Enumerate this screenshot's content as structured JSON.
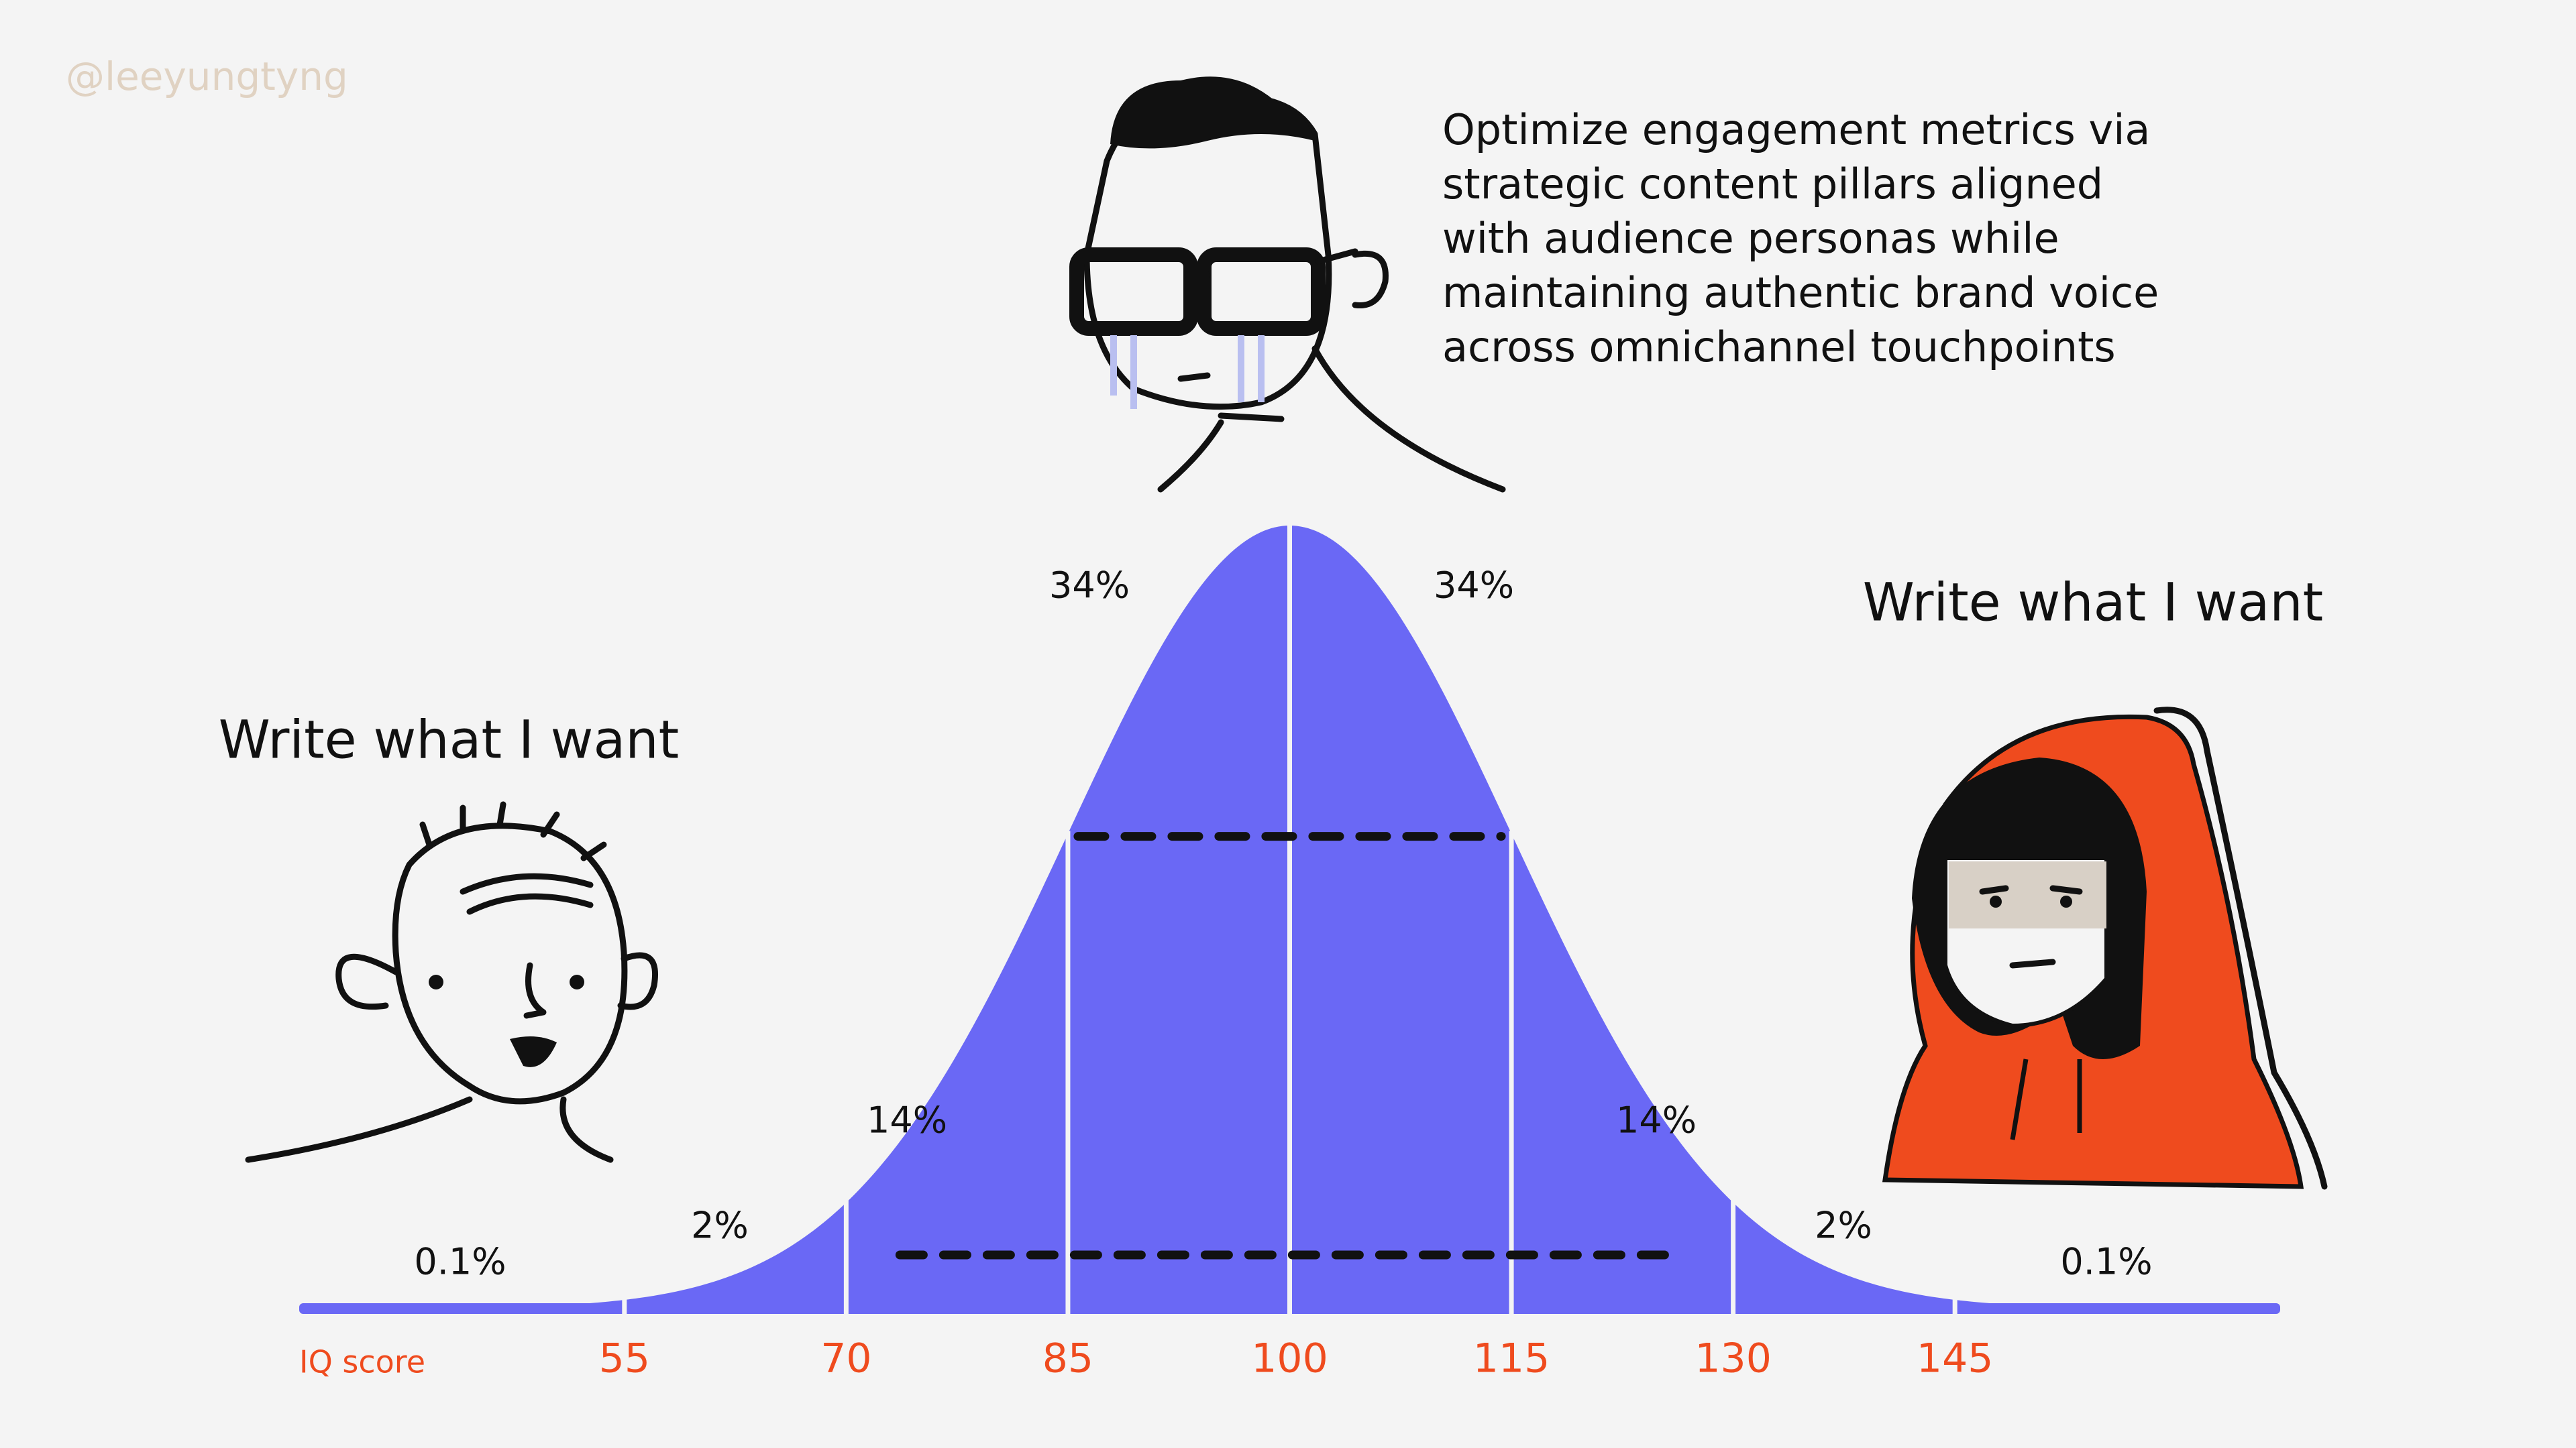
{
  "watermark": "@leeyungtyng",
  "chart_data": {
    "type": "bell",
    "xlabel": "IQ score",
    "xlim": [
      33,
      167
    ],
    "xticks": [
      55,
      70,
      85,
      100,
      115,
      130,
      145
    ],
    "values": [
      0.1,
      2,
      14,
      34,
      34,
      14,
      2,
      0.1
    ],
    "value_labels": [
      "0.1%",
      "2%",
      "14%",
      "34%",
      "34%",
      "14%",
      "2%",
      "0.1%"
    ],
    "color": "#6a68f5",
    "tick_color": "#ef4b1e",
    "annotations": [
      {
        "lines": [
          "Write what I want"
        ]
      },
      {
        "lines": [
          "Optimize engagement metrics via",
          "strategic content pillars aligned",
          "with audience personas while",
          "maintaining authentic brand voice",
          "across omnichannel touchpoints"
        ]
      },
      {
        "lines": [
          "Write what I want"
        ]
      }
    ]
  }
}
